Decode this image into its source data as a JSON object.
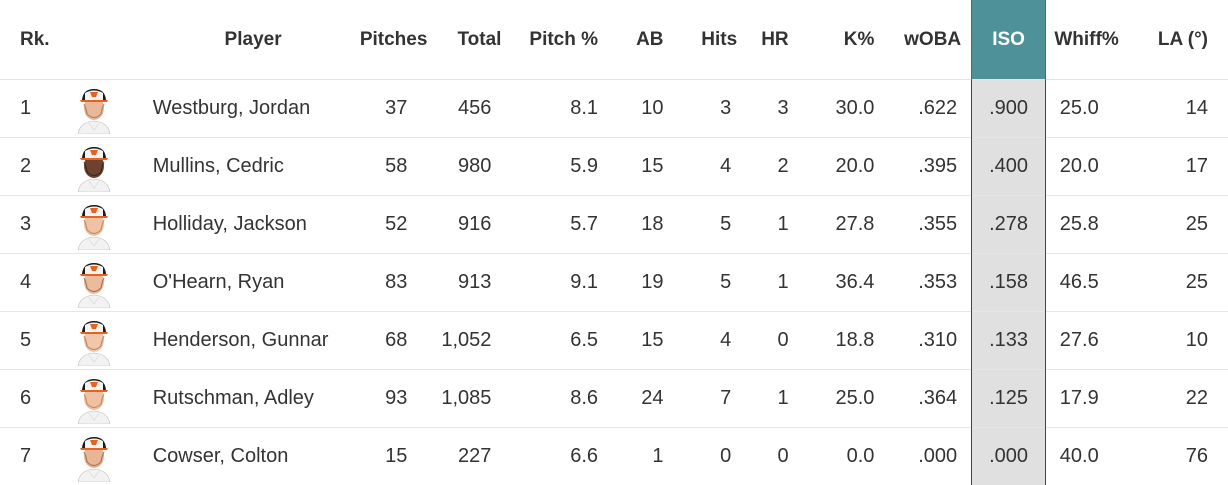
{
  "table": {
    "headers": {
      "rank": "Rk.",
      "player": "Player",
      "pitches": "Pitches",
      "total": "Total",
      "pitch_pct": "Pitch %",
      "ab": "AB",
      "hits": "Hits",
      "hr": "HR",
      "k_pct": "K%",
      "woba": "wOBA",
      "iso": "ISO",
      "whiff_pct": "Whiff%",
      "la": "LA (°)"
    },
    "sorted_column": "ISO",
    "rows": [
      {
        "rank": "1",
        "player": "Westburg, Jordan",
        "pitches": "37",
        "total": "456",
        "pitch_pct": "8.1",
        "ab": "10",
        "hits": "3",
        "hr": "3",
        "k_pct": "30.0",
        "woba": ".622",
        "iso": ".900",
        "whiff_pct": "25.0",
        "la": "14",
        "skin": "#e9b89a",
        "hair": "#8a5a3a"
      },
      {
        "rank": "2",
        "player": "Mullins, Cedric",
        "pitches": "58",
        "total": "980",
        "pitch_pct": "5.9",
        "ab": "15",
        "hits": "4",
        "hr": "2",
        "k_pct": "20.0",
        "woba": ".395",
        "iso": ".400",
        "whiff_pct": "20.0",
        "la": "17",
        "skin": "#6b4330",
        "hair": "#1e1410"
      },
      {
        "rank": "3",
        "player": "Holliday, Jackson",
        "pitches": "52",
        "total": "916",
        "pitch_pct": "5.7",
        "ab": "18",
        "hits": "5",
        "hr": "1",
        "k_pct": "27.8",
        "woba": ".355",
        "iso": ".278",
        "whiff_pct": "25.8",
        "la": "25",
        "skin": "#f0c2a4",
        "hair": "#9a6a45"
      },
      {
        "rank": "4",
        "player": "O'Hearn, Ryan",
        "pitches": "83",
        "total": "913",
        "pitch_pct": "9.1",
        "ab": "19",
        "hits": "5",
        "hr": "1",
        "k_pct": "36.4",
        "woba": ".353",
        "iso": ".158",
        "whiff_pct": "46.5",
        "la": "25",
        "skin": "#ecbb9c",
        "hair": "#6e4a30"
      },
      {
        "rank": "5",
        "player": "Henderson, Gunnar",
        "pitches": "68",
        "total": "1,052",
        "pitch_pct": "6.5",
        "ab": "15",
        "hits": "4",
        "hr": "0",
        "k_pct": "18.8",
        "woba": ".310",
        "iso": ".133",
        "whiff_pct": "27.6",
        "la": "10",
        "skin": "#f1c6aa",
        "hair": "#8c6440"
      },
      {
        "rank": "6",
        "player": "Rutschman, Adley",
        "pitches": "93",
        "total": "1,085",
        "pitch_pct": "8.6",
        "ab": "24",
        "hits": "7",
        "hr": "1",
        "k_pct": "25.0",
        "woba": ".364",
        "iso": ".125",
        "whiff_pct": "17.9",
        "la": "22",
        "skin": "#efc0a2",
        "hair": "#a0704a"
      },
      {
        "rank": "7",
        "player": "Cowser, Colton",
        "pitches": "15",
        "total": "227",
        "pitch_pct": "6.6",
        "ab": "1",
        "hits": "0",
        "hr": "0",
        "k_pct": "0.0",
        "woba": ".000",
        "iso": ".000",
        "whiff_pct": "40.0",
        "la": "76",
        "skin": "#e8b596",
        "hair": "#7a5234"
      }
    ]
  }
}
